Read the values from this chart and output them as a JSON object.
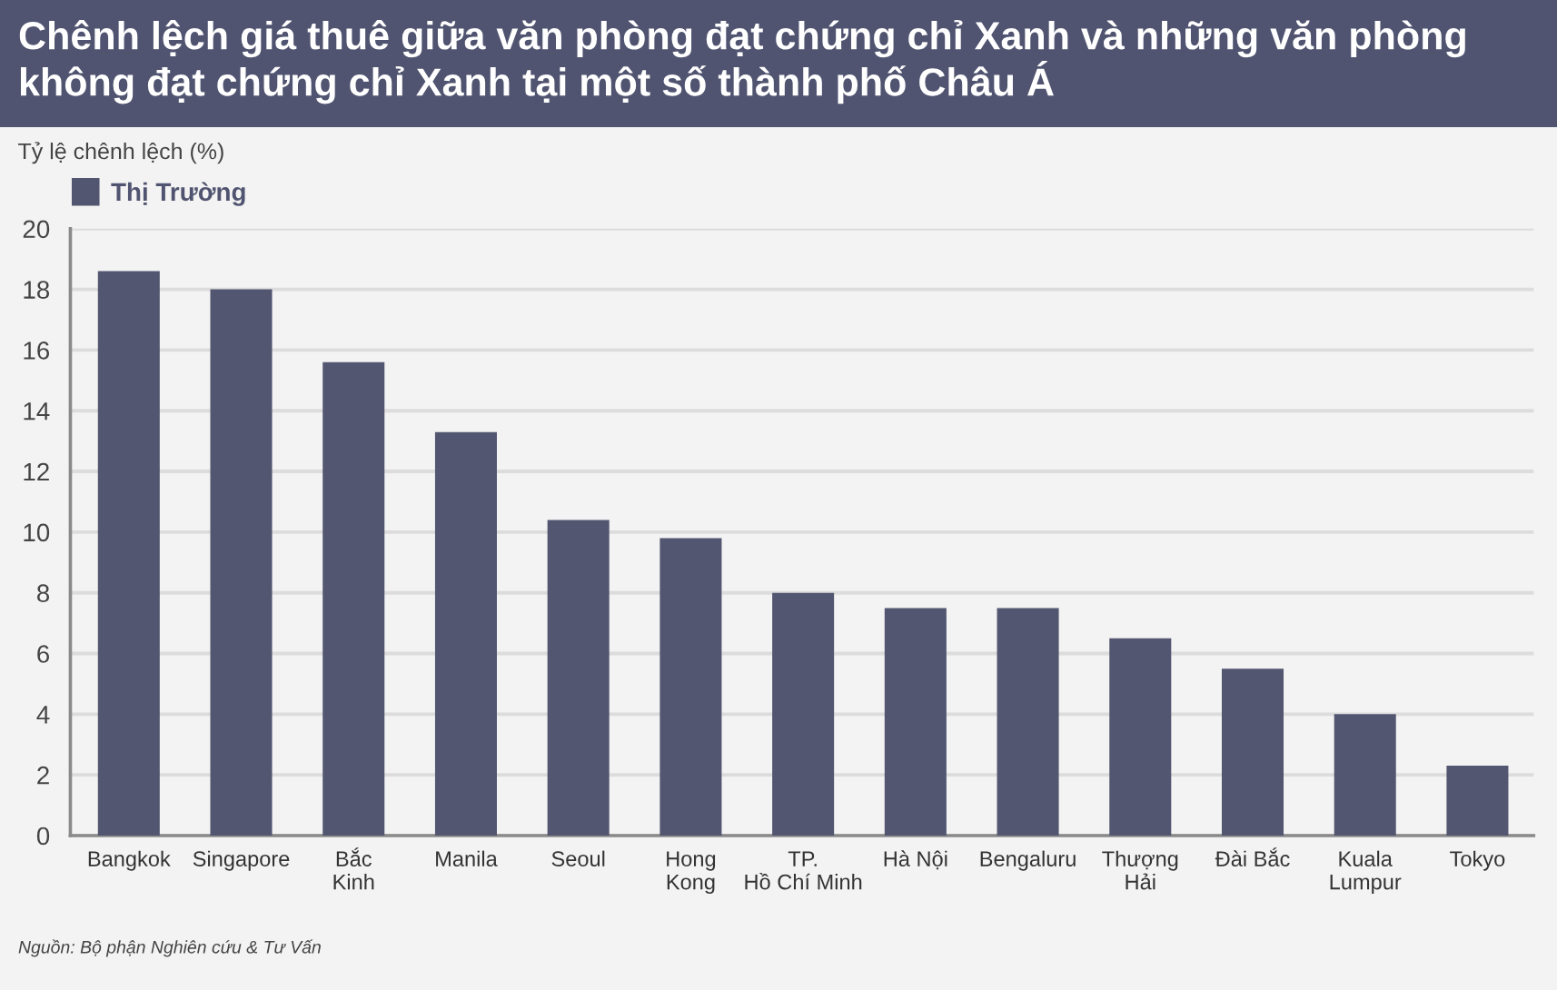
{
  "chart_data": {
    "type": "bar",
    "title": "Chênh lệch giá thuê giữa văn phòng đạt chứng chỉ Xanh và những văn phòng không đạt chứng chỉ Xanh tại một số thành phố Châu Á",
    "ylabel": "Tỷ lệ chênh lệch (%)",
    "categories": [
      "Bangkok",
      "Singapore",
      "Bắc\nKinh",
      "Manila",
      "Seoul",
      "Hong\nKong",
      "TP.\nHồ Chí Minh",
      "Hà Nội",
      "Bengaluru",
      "Thượng\nHải",
      "Đài Bắc",
      "Kuala\nLumpur",
      "Tokyo"
    ],
    "series": [
      {
        "name": "Thị Trường",
        "color": "#535670",
        "values": [
          18.6,
          18.0,
          15.6,
          13.3,
          10.4,
          9.8,
          8.0,
          7.5,
          7.5,
          6.5,
          5.5,
          4.0,
          2.3
        ]
      }
    ],
    "ylim": [
      0,
      20
    ],
    "yticks": [
      0,
      2,
      4,
      6,
      8,
      10,
      12,
      14,
      16,
      18,
      20
    ],
    "grid": "y",
    "legend": "top left",
    "annotations": [
      "Nguồn: Bộ phận Nghiên cứu & Tư Vấn"
    ]
  }
}
